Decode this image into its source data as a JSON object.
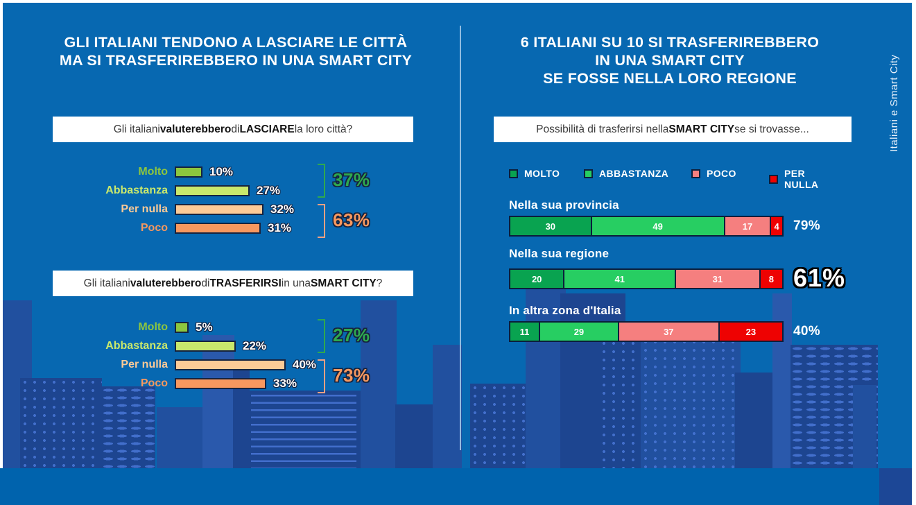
{
  "sidebar": {
    "label": "Italiani e Smart City"
  },
  "left_panel": {
    "title_line1": "GLI ITALIANI TENDONO A LASCIARE LE CITTÀ",
    "title_line2": "MA SI TRASFERIREBBERO IN UNA SMART CITY"
  },
  "right_panel": {
    "title_line1": "6 ITALIANI SU 10 SI TRASFERIREBBERO",
    "title_line2": "IN UNA SMART CITY",
    "title_line3": "SE FOSSE NELLA LORO REGIONE"
  },
  "chart_data": [
    {
      "type": "bar",
      "title": "Gli italiani valuterebbero di LASCIARE la loro città?",
      "title_segments": [
        {
          "text": "Gli italiani ",
          "bold": false
        },
        {
          "text": "valuterebbero",
          "bold": true
        },
        {
          "text": " di ",
          "bold": false
        },
        {
          "text": "LASCIARE",
          "bold": true
        },
        {
          "text": " la loro città?",
          "bold": false
        }
      ],
      "unit": "%",
      "xlim": [
        0,
        100
      ],
      "categories": [
        "Molto",
        "Abbastanza",
        "Per nulla",
        "Poco"
      ],
      "values": [
        10,
        27,
        32,
        31
      ],
      "value_labels": [
        "10%",
        "27%",
        "32%",
        "31%"
      ],
      "bar_colors": [
        "#8DC63F",
        "#C9E86C",
        "#FBCA97",
        "#F7985F"
      ],
      "label_colors": [
        "#8DC63F",
        "#C9E86C",
        "#FBCA97",
        "#F7985F"
      ],
      "brackets": [
        {
          "label": "37%",
          "covers": [
            "Molto",
            "Abbastanza"
          ],
          "text_color": "#2EA94F",
          "bracket_color": "#2EA94F"
        },
        {
          "label": "63%",
          "covers": [
            "Per nulla",
            "Poco"
          ],
          "text_color": "#F7985F",
          "bracket_color": "#EFA183"
        }
      ]
    },
    {
      "type": "bar",
      "title": "Gli italiani valuterebbero di TRASFERIRSI in una SMART CITY?",
      "title_segments": [
        {
          "text": "Gli italiani ",
          "bold": false
        },
        {
          "text": "valuterebbero",
          "bold": true
        },
        {
          "text": " di ",
          "bold": false
        },
        {
          "text": "TRASFERIRSI",
          "bold": true
        },
        {
          "text": " in una ",
          "bold": false
        },
        {
          "text": "SMART CITY",
          "bold": true
        },
        {
          "text": "?",
          "bold": false
        }
      ],
      "unit": "%",
      "xlim": [
        0,
        100
      ],
      "categories": [
        "Molto",
        "Abbastanza",
        "Per nulla",
        "Poco"
      ],
      "values": [
        5,
        22,
        40,
        33
      ],
      "value_labels": [
        "5%",
        "22%",
        "40%",
        "33%"
      ],
      "bar_colors": [
        "#8DC63F",
        "#C9E86C",
        "#FBCA97",
        "#F7985F"
      ],
      "label_colors": [
        "#8DC63F",
        "#C9E86C",
        "#FBCA97",
        "#F7985F"
      ],
      "brackets": [
        {
          "label": "27%",
          "covers": [
            "Molto",
            "Abbastanza"
          ],
          "text_color": "#2EA94F",
          "bracket_color": "#2EA94F"
        },
        {
          "label": "73%",
          "covers": [
            "Per nulla",
            "Poco"
          ],
          "text_color": "#F7985F",
          "bracket_color": "#EFA183"
        }
      ]
    },
    {
      "type": "stacked-bar",
      "title": "Possibilità di trasferirsi nella SMART CITY se si trovasse...",
      "title_segments": [
        {
          "text": "Possibilità di trasferirsi nella ",
          "bold": false
        },
        {
          "text": "SMART CITY",
          "bold": true
        },
        {
          "text": " se si trovasse...",
          "bold": false
        }
      ],
      "unit": "%",
      "legend": [
        {
          "label": "MOLTO",
          "color": "#09A350"
        },
        {
          "label": "ABBASTANZA",
          "color": "#27CE62"
        },
        {
          "label": "POCO",
          "color": "#F57F7F"
        },
        {
          "label": "PER NULLA",
          "color": "#EE0202"
        }
      ],
      "categories": [
        "Nella sua provincia",
        "Nella sua regione",
        "In altra zona d'Italia"
      ],
      "series": [
        {
          "name": "MOLTO",
          "values": [
            30,
            20,
            11
          ]
        },
        {
          "name": "ABBASTANZA",
          "values": [
            49,
            41,
            29
          ]
        },
        {
          "name": "POCO",
          "values": [
            17,
            31,
            37
          ]
        },
        {
          "name": "PER NULLA",
          "values": [
            4,
            8,
            23
          ]
        }
      ],
      "totals": [
        {
          "label": "79%",
          "emphasis": false
        },
        {
          "label": "61%",
          "emphasis": true
        },
        {
          "label": "40%",
          "emphasis": false
        }
      ]
    }
  ],
  "colors": {
    "background": "#0768B1",
    "skyline": "#1D4590",
    "footer": "#0063AD",
    "footer_accent": "#1C4796",
    "divider": "#A9CCEA",
    "bar_outline": "#16233F"
  }
}
